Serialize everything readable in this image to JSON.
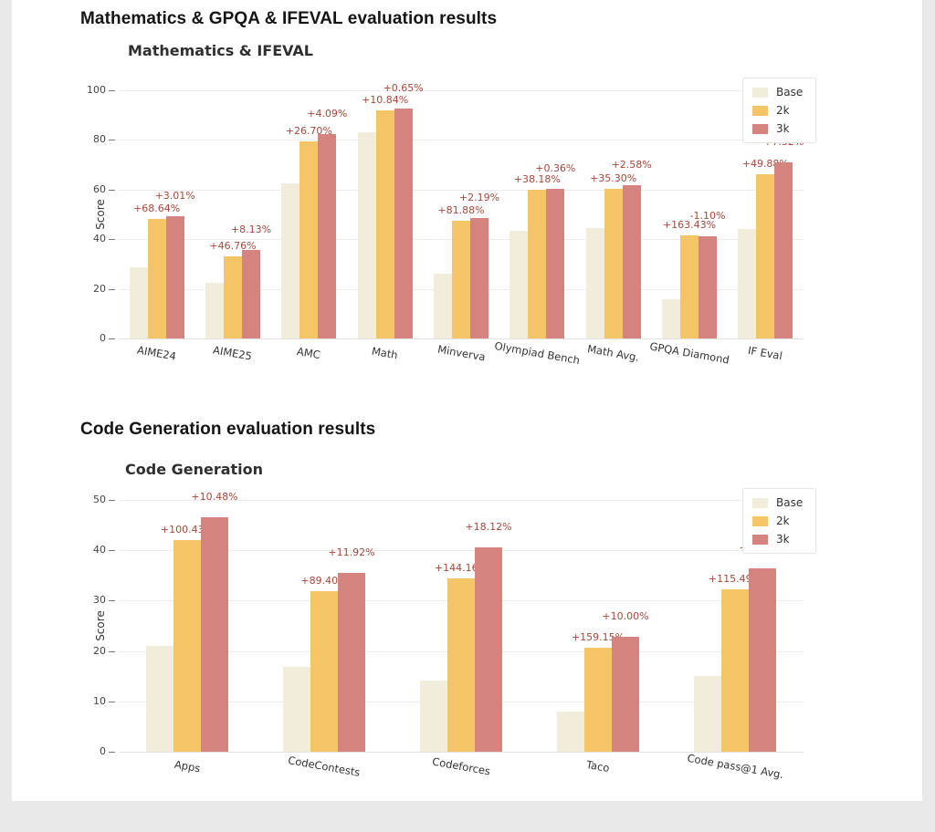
{
  "page": {
    "heading_math": "Mathematics & GPQA & IFEVAL evaluation results",
    "heading_code": "Code Generation evaluation results"
  },
  "colors": {
    "base": "#f2ecdb",
    "k2": "#f3c567",
    "k3": "#d5837f",
    "annotation": "#a8473a",
    "grid": "#ececec"
  },
  "chart_data": [
    {
      "type": "bar",
      "title": "Mathematics & IFEVAL",
      "xlabel": "",
      "ylabel": "Score",
      "ylim": [
        0,
        100
      ],
      "yticks": [
        0,
        20,
        40,
        60,
        80,
        100
      ],
      "grid": true,
      "legend_position": "upper right",
      "legend": [
        "Base",
        "2k",
        "3k"
      ],
      "categories": [
        "AIME24",
        "AIME25",
        "AMC",
        "Math",
        "Minverva",
        "Olympiad Bench",
        "Math Avg.",
        "GPQA Diamond",
        "IF Eval"
      ],
      "series": [
        {
          "name": "Base",
          "values": [
            28.5,
            22.5,
            62.5,
            83.0,
            26.0,
            43.5,
            44.5,
            15.8,
            44.0
          ]
        },
        {
          "name": "2k",
          "values": [
            48.0,
            33.0,
            79.5,
            92.0,
            47.5,
            60.0,
            60.2,
            41.6,
            66.0
          ]
        },
        {
          "name": "3k",
          "values": [
            49.4,
            35.7,
            82.5,
            92.6,
            48.5,
            60.3,
            61.7,
            41.1,
            70.8
          ]
        }
      ],
      "annotations_2k": [
        "+68.64%",
        "+46.76%",
        "+26.70%",
        "+10.84%",
        "+81.88%",
        "+38.18%",
        "+35.30%",
        "+163.43%",
        "+49.88%"
      ],
      "annotations_3k": [
        "+3.01%",
        "+8.13%",
        "+4.09%",
        "+0.65%",
        "+2.19%",
        "+0.36%",
        "+2.58%",
        "-1.10%",
        "+7.32%"
      ]
    },
    {
      "type": "bar",
      "title": "Code Generation",
      "xlabel": "",
      "ylabel": "Score",
      "ylim": [
        0,
        50
      ],
      "yticks": [
        0,
        10,
        20,
        30,
        40,
        50
      ],
      "grid": true,
      "legend_position": "upper right",
      "legend": [
        "Base",
        "2k",
        "3k"
      ],
      "categories": [
        "Apps",
        "CodeContests",
        "Codeforces",
        "Taco",
        "Code pass@1 Avg."
      ],
      "series": [
        {
          "name": "Base",
          "values": [
            21.0,
            16.8,
            14.1,
            8.0,
            15.0
          ]
        },
        {
          "name": "2k",
          "values": [
            42.1,
            31.8,
            34.4,
            20.7,
            32.3
          ]
        },
        {
          "name": "3k",
          "values": [
            46.5,
            35.6,
            40.6,
            22.8,
            36.4
          ]
        }
      ],
      "annotations_2k": [
        "+100.43%",
        "+89.40%",
        "+144.16%",
        "+159.15%",
        "+115.49%"
      ],
      "annotations_3k": [
        "+10.48%",
        "+11.92%",
        "+18.12%",
        "+10.00%",
        "+12.76%"
      ]
    }
  ]
}
